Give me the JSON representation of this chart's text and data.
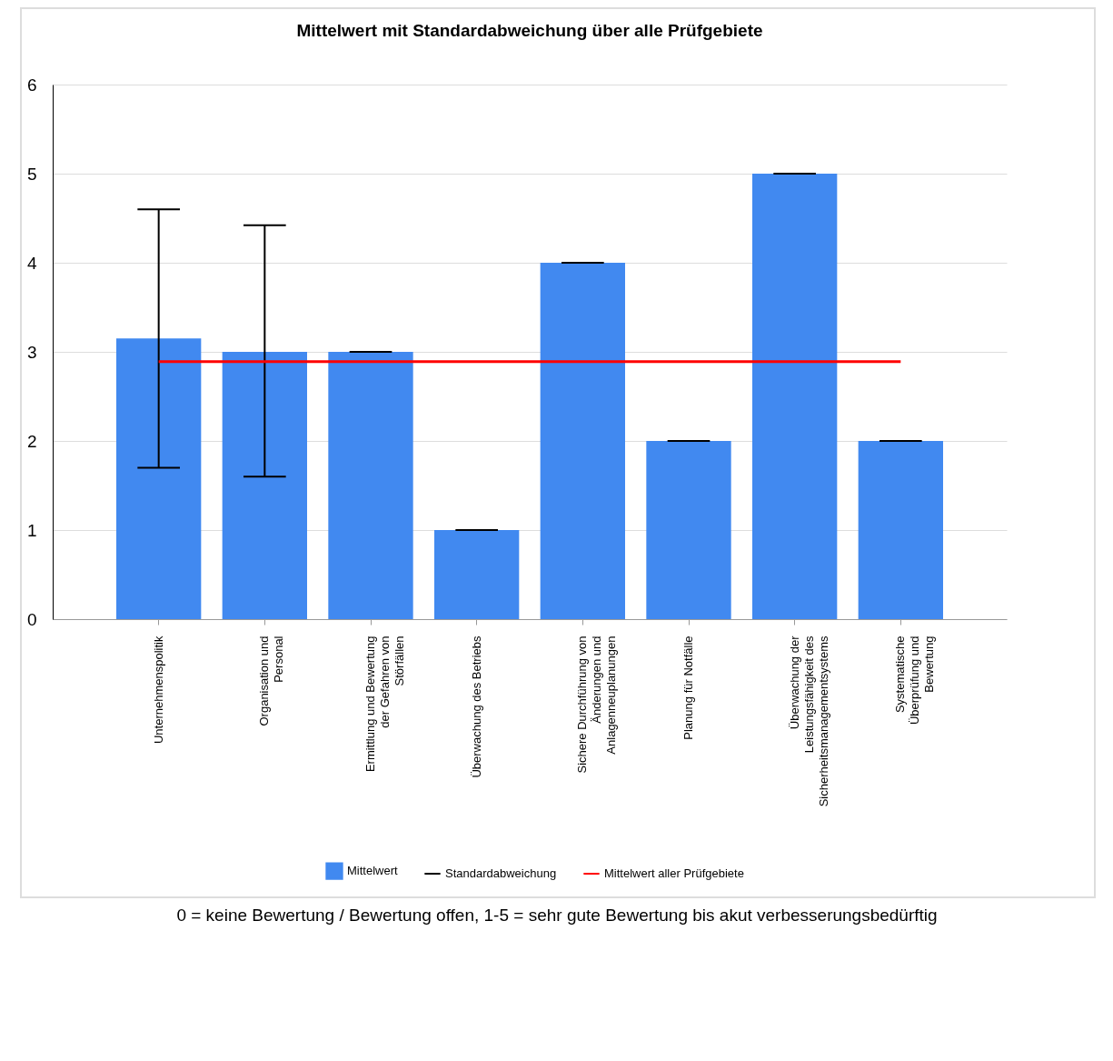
{
  "chart_data": {
    "type": "bar",
    "title": "Mittelwert mit Standardabweichung über alle Prüfgebiete",
    "categories": [
      "Unternehmenspolitik",
      "Organisation und Personal",
      "Ermittlung und Bewertung der Gefahren von Störfällen",
      "Überwachung des Betriebs",
      "Sichere Durchführung von Änderungen und Anlagenneuplanungen",
      "Planung für Notfälle",
      "Überwachung der Leistungsfähigkeit des Sicherheitsmanagementsystems",
      "Systematische Überprüfung und Bewertung"
    ],
    "series": [
      {
        "name": "Mittelwert",
        "color": "#4189f0",
        "values": [
          3.15,
          3,
          3,
          1,
          4,
          2,
          5,
          2
        ],
        "errors": [
          [
            1.7,
            4.6
          ],
          [
            1.6,
            4.42
          ],
          0,
          0,
          0,
          0,
          0,
          0
        ]
      }
    ],
    "ylim": [
      0,
      6
    ],
    "yticks": [
      0,
      1,
      2,
      3,
      4,
      5,
      6
    ],
    "grid": "y",
    "legend": "bottom",
    "ref_lines": [
      {
        "axis": "y",
        "value": 2.89,
        "label": "Mittelwert aller Prüfgebiete",
        "color": "#ff0000"
      }
    ],
    "annotations": [
      "Standardabweichung",
      "0 = keine Bewertung / Bewertung offen, 1-5 = sehr gute Bewertung bis akut verbesserungsbedürftig"
    ]
  }
}
